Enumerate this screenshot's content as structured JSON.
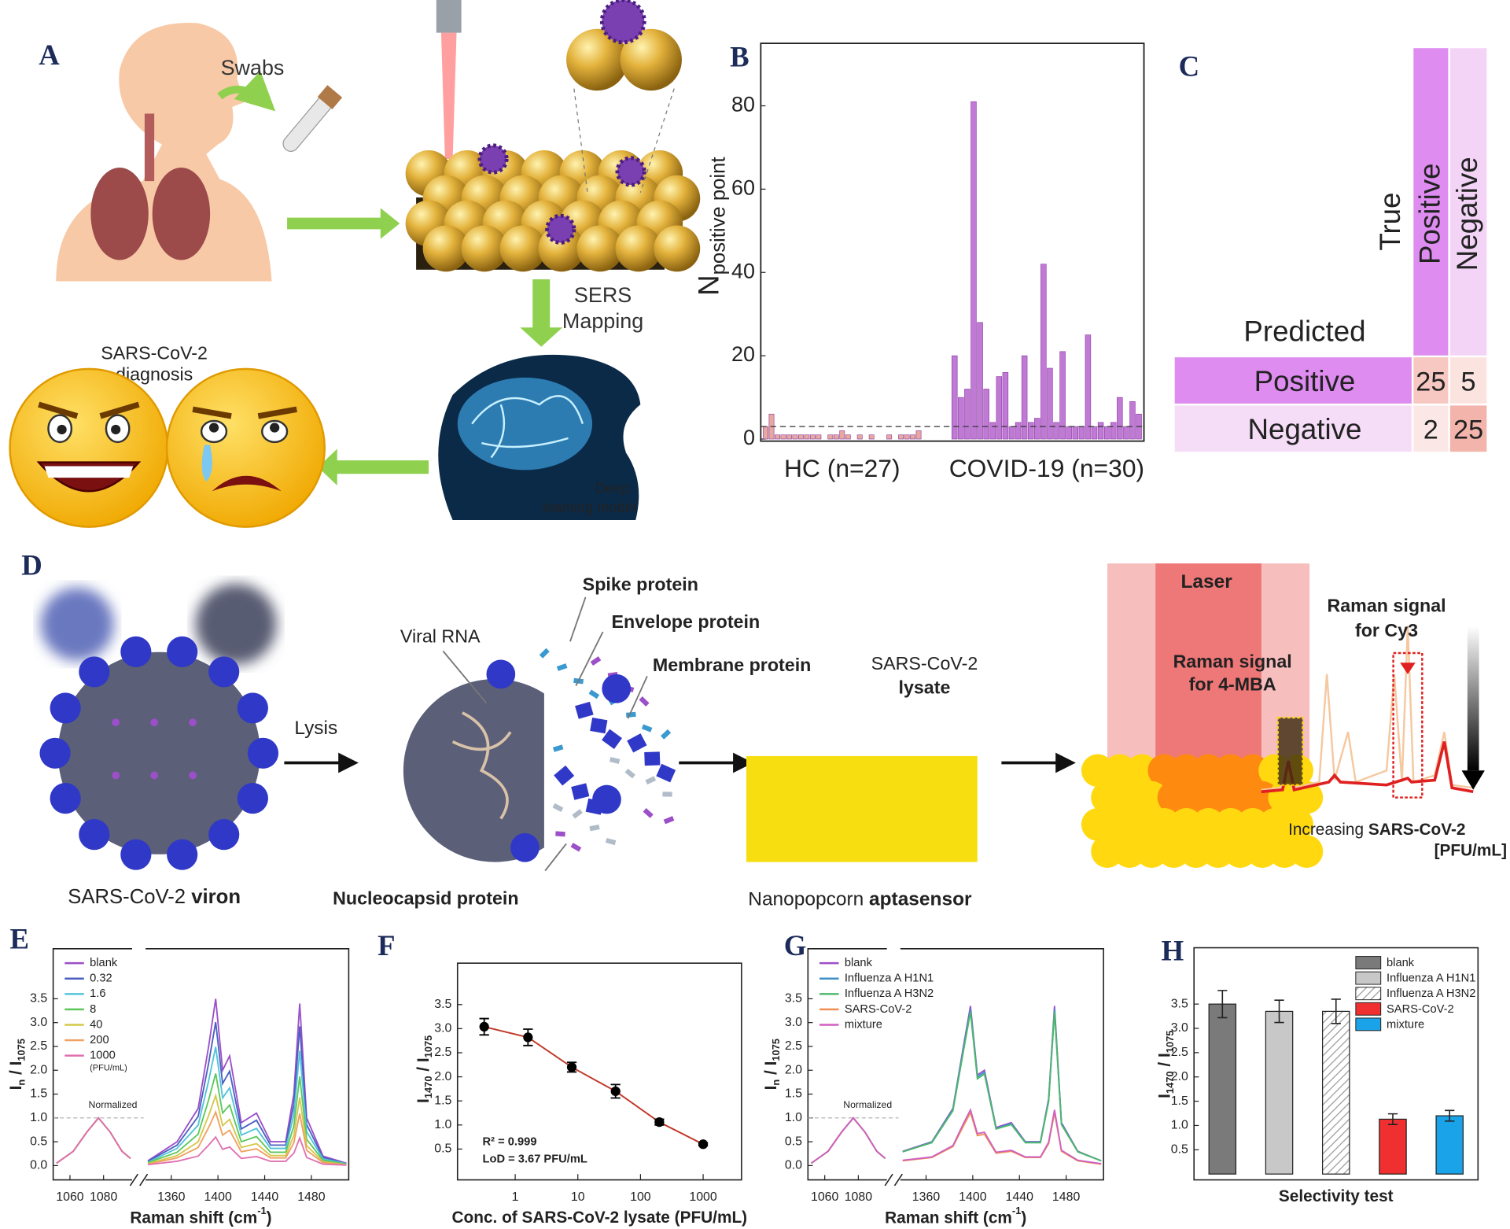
{
  "panel_labels": [
    "A",
    "B",
    "C",
    "D",
    "E",
    "F",
    "G",
    "H"
  ],
  "illustration_a": {
    "swabs": "Swabs",
    "sers_mapping": [
      "SERS",
      "Mapping"
    ],
    "diagnosis": [
      "SARS-CoV-2",
      "diagnosis"
    ],
    "model": [
      "Deep",
      "leaming model"
    ]
  },
  "confusion_matrix": {
    "true_label": "True",
    "predicted_label": "Predicted",
    "columns": [
      "Positive",
      "Negative"
    ],
    "rows": [
      "Positive",
      "Negative"
    ],
    "cells": [
      [
        25,
        5
      ],
      [
        2,
        25
      ]
    ]
  },
  "illustration_d": {
    "lysis": "Lysis",
    "spike": "Spike protein",
    "envelope": "Envelope protein",
    "membrane": "Membrane protein",
    "rna": "Viral RNA",
    "nucleocapsid": "Nucleocapsid protein",
    "virion": [
      "SARS-CoV-2 ",
      "viron"
    ],
    "lysate": [
      "SARS-CoV-2",
      "lysate"
    ],
    "aptasensor": [
      "Nanopopcorn ",
      "aptasensor"
    ],
    "laser": "Laser",
    "cy3": [
      "Raman signal",
      "for Cy3"
    ],
    "mba": [
      "Raman signal",
      "for  4-MBA"
    ],
    "increasing": [
      "Increasing ",
      "SARS-CoV-2",
      "[PFU/mL]"
    ]
  },
  "chart_data": [
    {
      "type": "bar",
      "y_label": [
        "N",
        "positive point"
      ],
      "groups": [
        {
          "name": "HC (n=27)",
          "color": "#e8a8a0",
          "values": [
            3,
            6,
            1,
            1,
            1,
            1,
            1,
            1,
            1,
            1,
            0,
            1,
            1,
            2,
            1,
            0,
            1,
            0,
            1,
            0,
            0,
            1,
            0,
            1,
            1,
            1,
            2
          ]
        },
        {
          "name": "COVID-19 (n=30)",
          "color": "#c07ad6",
          "values": [
            20,
            10,
            12,
            81,
            28,
            12,
            4,
            15,
            16,
            3,
            4,
            20,
            4,
            5,
            42,
            17,
            4,
            21,
            3,
            3,
            3,
            25,
            3,
            4,
            3,
            4,
            10,
            3,
            9,
            6
          ]
        }
      ],
      "threshold": 3,
      "ylim": [
        -0.5,
        95
      ],
      "yticks": [
        0,
        20,
        40,
        60,
        80
      ]
    },
    {
      "type": "line",
      "y_label": [
        "I",
        "n",
        " / I",
        "1075"
      ],
      "x_label": [
        "Raman shift (cm",
        "-1",
        ")"
      ],
      "x": [
        1052,
        1062,
        1070,
        1077,
        1084,
        1091,
        1096,
        1340,
        1365,
        1383,
        1392,
        1398,
        1404,
        1410,
        1420,
        1433,
        1445,
        1458,
        1465,
        1470,
        1476,
        1490,
        1510
      ],
      "x_break": [
        1097,
        1338
      ],
      "xlim": [
        1050,
        1512
      ],
      "xticks": [
        1060,
        1080,
        1360,
        1400,
        1440,
        1480
      ],
      "ylim": [
        -0.3,
        4.55
      ],
      "yticks": [
        {
          "value": 0,
          "label": "0.0"
        },
        0.5,
        {
          "value": 1,
          "label": "1.0"
        },
        1.5,
        {
          "value": 2,
          "label": "2.0"
        },
        2.5,
        {
          "value": 3,
          "label": "3.0"
        },
        3.5
      ],
      "reference_line": 1,
      "reference_label": "Normalized",
      "legend_note": "(PFU/mL)",
      "series": [
        {
          "name": "blank",
          "color": "#9b4fc8",
          "values": [
            0.05,
            0.3,
            0.7,
            1.0,
            0.7,
            0.3,
            0.15,
            0.1,
            0.5,
            1.2,
            2.5,
            3.5,
            2.0,
            2.3,
            0.9,
            1.1,
            0.5,
            0.5,
            1.5,
            3.4,
            1.0,
            0.2,
            0.05
          ]
        },
        {
          "name": "0.32",
          "color": "#4a5fc1",
          "values": [
            0.05,
            0.3,
            0.7,
            1.0,
            0.7,
            0.3,
            0.15,
            0.09,
            0.43,
            1.03,
            2.15,
            3.01,
            1.72,
            1.98,
            0.77,
            0.95,
            0.43,
            0.43,
            1.29,
            2.92,
            0.86,
            0.17,
            0.04
          ]
        },
        {
          "name": "1.6",
          "color": "#4fc3d9",
          "values": [
            0.05,
            0.3,
            0.7,
            1.0,
            0.7,
            0.3,
            0.15,
            0.07,
            0.36,
            0.85,
            1.78,
            2.49,
            1.42,
            1.63,
            0.64,
            0.78,
            0.36,
            0.36,
            1.07,
            2.41,
            0.71,
            0.14,
            0.04
          ]
        },
        {
          "name": "8",
          "color": "#5cc85c",
          "values": [
            0.05,
            0.3,
            0.7,
            1.0,
            0.7,
            0.3,
            0.15,
            0.06,
            0.28,
            0.66,
            1.38,
            1.93,
            1.1,
            1.27,
            0.5,
            0.61,
            0.28,
            0.28,
            0.83,
            1.87,
            0.55,
            0.11,
            0.03
          ]
        },
        {
          "name": "40",
          "color": "#d4c84a",
          "values": [
            0.05,
            0.3,
            0.7,
            1.0,
            0.7,
            0.3,
            0.15,
            0.04,
            0.21,
            0.5,
            1.05,
            1.47,
            0.84,
            0.97,
            0.38,
            0.46,
            0.21,
            0.21,
            0.63,
            1.43,
            0.42,
            0.08,
            0.02
          ]
        },
        {
          "name": "200",
          "color": "#f0a060",
          "values": [
            0.05,
            0.3,
            0.7,
            1.0,
            0.7,
            0.3,
            0.15,
            0.03,
            0.16,
            0.38,
            0.8,
            1.12,
            0.64,
            0.74,
            0.29,
            0.35,
            0.16,
            0.16,
            0.48,
            1.09,
            0.32,
            0.06,
            0.02
          ]
        },
        {
          "name": "1000",
          "color": "#e06fb0",
          "values": [
            0.05,
            0.3,
            0.7,
            1.0,
            0.7,
            0.3,
            0.15,
            0.02,
            0.09,
            0.2,
            0.43,
            0.6,
            0.34,
            0.39,
            0.15,
            0.19,
            0.09,
            0.09,
            0.26,
            0.58,
            0.17,
            0.03,
            0.01
          ]
        }
      ]
    },
    {
      "type": "scatter",
      "y_label": [
        "I",
        "1470",
        " / I",
        "1075"
      ],
      "x_label": "Conc. of SARS-CoV-2 lysate (PFU/mL)",
      "x": [
        0.32,
        1.6,
        8,
        40,
        200,
        1000
      ],
      "values": [
        3.04,
        2.82,
        2.2,
        1.7,
        1.06,
        0.6
      ],
      "errors": [
        0.17,
        0.17,
        0.1,
        0.14,
        0.06,
        0.03
      ],
      "color": "#000000",
      "fit_color": "#c0392b",
      "log_x": true,
      "xlim": [
        0.12,
        4100
      ],
      "xticks": [
        1,
        10,
        100,
        1000
      ],
      "ylim": [
        -0.14,
        4.36
      ],
      "yticks": [
        0.5,
        {
          "value": 1,
          "label": "1.0"
        },
        1.5,
        {
          "value": 2,
          "label": "2.0"
        },
        2.5,
        {
          "value": 3,
          "label": "3.0"
        },
        3.5
      ],
      "annotations": [
        "R² = 0.999",
        "LoD = 3.67 PFU/mL"
      ]
    },
    {
      "type": "line",
      "y_label": [
        "I",
        "n",
        " / I",
        "1075"
      ],
      "x_label": [
        "Raman shift (cm",
        "-1",
        ")"
      ],
      "x": [
        1052,
        1062,
        1070,
        1077,
        1084,
        1091,
        1096,
        1340,
        1365,
        1383,
        1392,
        1398,
        1404,
        1410,
        1420,
        1433,
        1445,
        1458,
        1465,
        1470,
        1476,
        1490,
        1510
      ],
      "x_break": [
        1097,
        1338
      ],
      "xlim": [
        1050,
        1512
      ],
      "xticks": [
        1060,
        1080,
        1360,
        1400,
        1440,
        1480
      ],
      "ylim": [
        -0.3,
        4.55
      ],
      "yticks": [
        {
          "value": 0,
          "label": "0.0"
        },
        0.5,
        {
          "value": 1,
          "label": "1.0"
        },
        1.5,
        {
          "value": 2,
          "label": "2.0"
        },
        2.5,
        {
          "value": 3,
          "label": "3.0"
        },
        3.5
      ],
      "reference_line": 1,
      "reference_label": "Normalized",
      "series": [
        {
          "name": "blank",
          "color": "#9b4fc8",
          "values": [
            0.05,
            0.3,
            0.7,
            1.0,
            0.7,
            0.3,
            0.15,
            0.3,
            0.5,
            1.2,
            2.5,
            3.35,
            1.9,
            2.0,
            0.8,
            0.9,
            0.5,
            0.5,
            1.4,
            3.35,
            0.9,
            0.3,
            0.1
          ]
        },
        {
          "name": "Influenza A H1N1",
          "color": "#3f8fc8",
          "values": [
            0.05,
            0.3,
            0.7,
            1.0,
            0.7,
            0.3,
            0.15,
            0.29,
            0.49,
            1.18,
            2.45,
            3.28,
            1.86,
            1.96,
            0.78,
            0.88,
            0.49,
            0.49,
            1.37,
            3.28,
            0.88,
            0.29,
            0.1
          ]
        },
        {
          "name": "Influenza A H3N2",
          "color": "#4cb86a",
          "values": [
            0.05,
            0.3,
            0.7,
            1.0,
            0.7,
            0.3,
            0.15,
            0.29,
            0.48,
            1.15,
            2.4,
            3.22,
            1.82,
            1.92,
            0.77,
            0.86,
            0.48,
            0.48,
            1.34,
            3.22,
            0.86,
            0.29,
            0.1
          ]
        },
        {
          "name": "SARS-CoV-2",
          "color": "#f09050",
          "values": [
            0.05,
            0.3,
            0.7,
            1.0,
            0.7,
            0.3,
            0.15,
            0.1,
            0.17,
            0.4,
            0.83,
            1.11,
            0.63,
            0.66,
            0.26,
            0.3,
            0.17,
            0.17,
            0.46,
            1.11,
            0.3,
            0.1,
            0.03
          ]
        },
        {
          "name": "mixture",
          "color": "#d05fc0",
          "values": [
            0.05,
            0.3,
            0.7,
            1.0,
            0.7,
            0.3,
            0.15,
            0.11,
            0.18,
            0.42,
            0.88,
            1.17,
            0.67,
            0.7,
            0.28,
            0.32,
            0.18,
            0.18,
            0.49,
            1.17,
            0.32,
            0.11,
            0.04
          ]
        }
      ]
    },
    {
      "type": "bar",
      "y_label": [
        "I",
        "1470",
        " / I",
        "1075"
      ],
      "x_label": "Selectivity test",
      "categories": [
        "blank",
        "Influenza A H1N1",
        "Influenza A H3N2",
        "SARS-CoV-2",
        "mixture"
      ],
      "values": [
        3.5,
        3.35,
        3.35,
        1.13,
        1.2
      ],
      "errors": [
        0.28,
        0.23,
        0.25,
        0.11,
        0.11
      ],
      "colors": [
        "#7a7a7a",
        "#c8c8c8",
        "#ffffff",
        "#f03030",
        "#1aa3e8"
      ],
      "hatched": [
        false,
        false,
        true,
        false,
        false
      ],
      "ylim": [
        -0.12,
        4.66
      ],
      "yticks": [
        0.5,
        {
          "value": 1,
          "label": "1.0"
        },
        1.5,
        {
          "value": 2,
          "label": "2.0"
        },
        2.5,
        {
          "value": 3,
          "label": "3.0"
        },
        3.5
      ]
    }
  ]
}
